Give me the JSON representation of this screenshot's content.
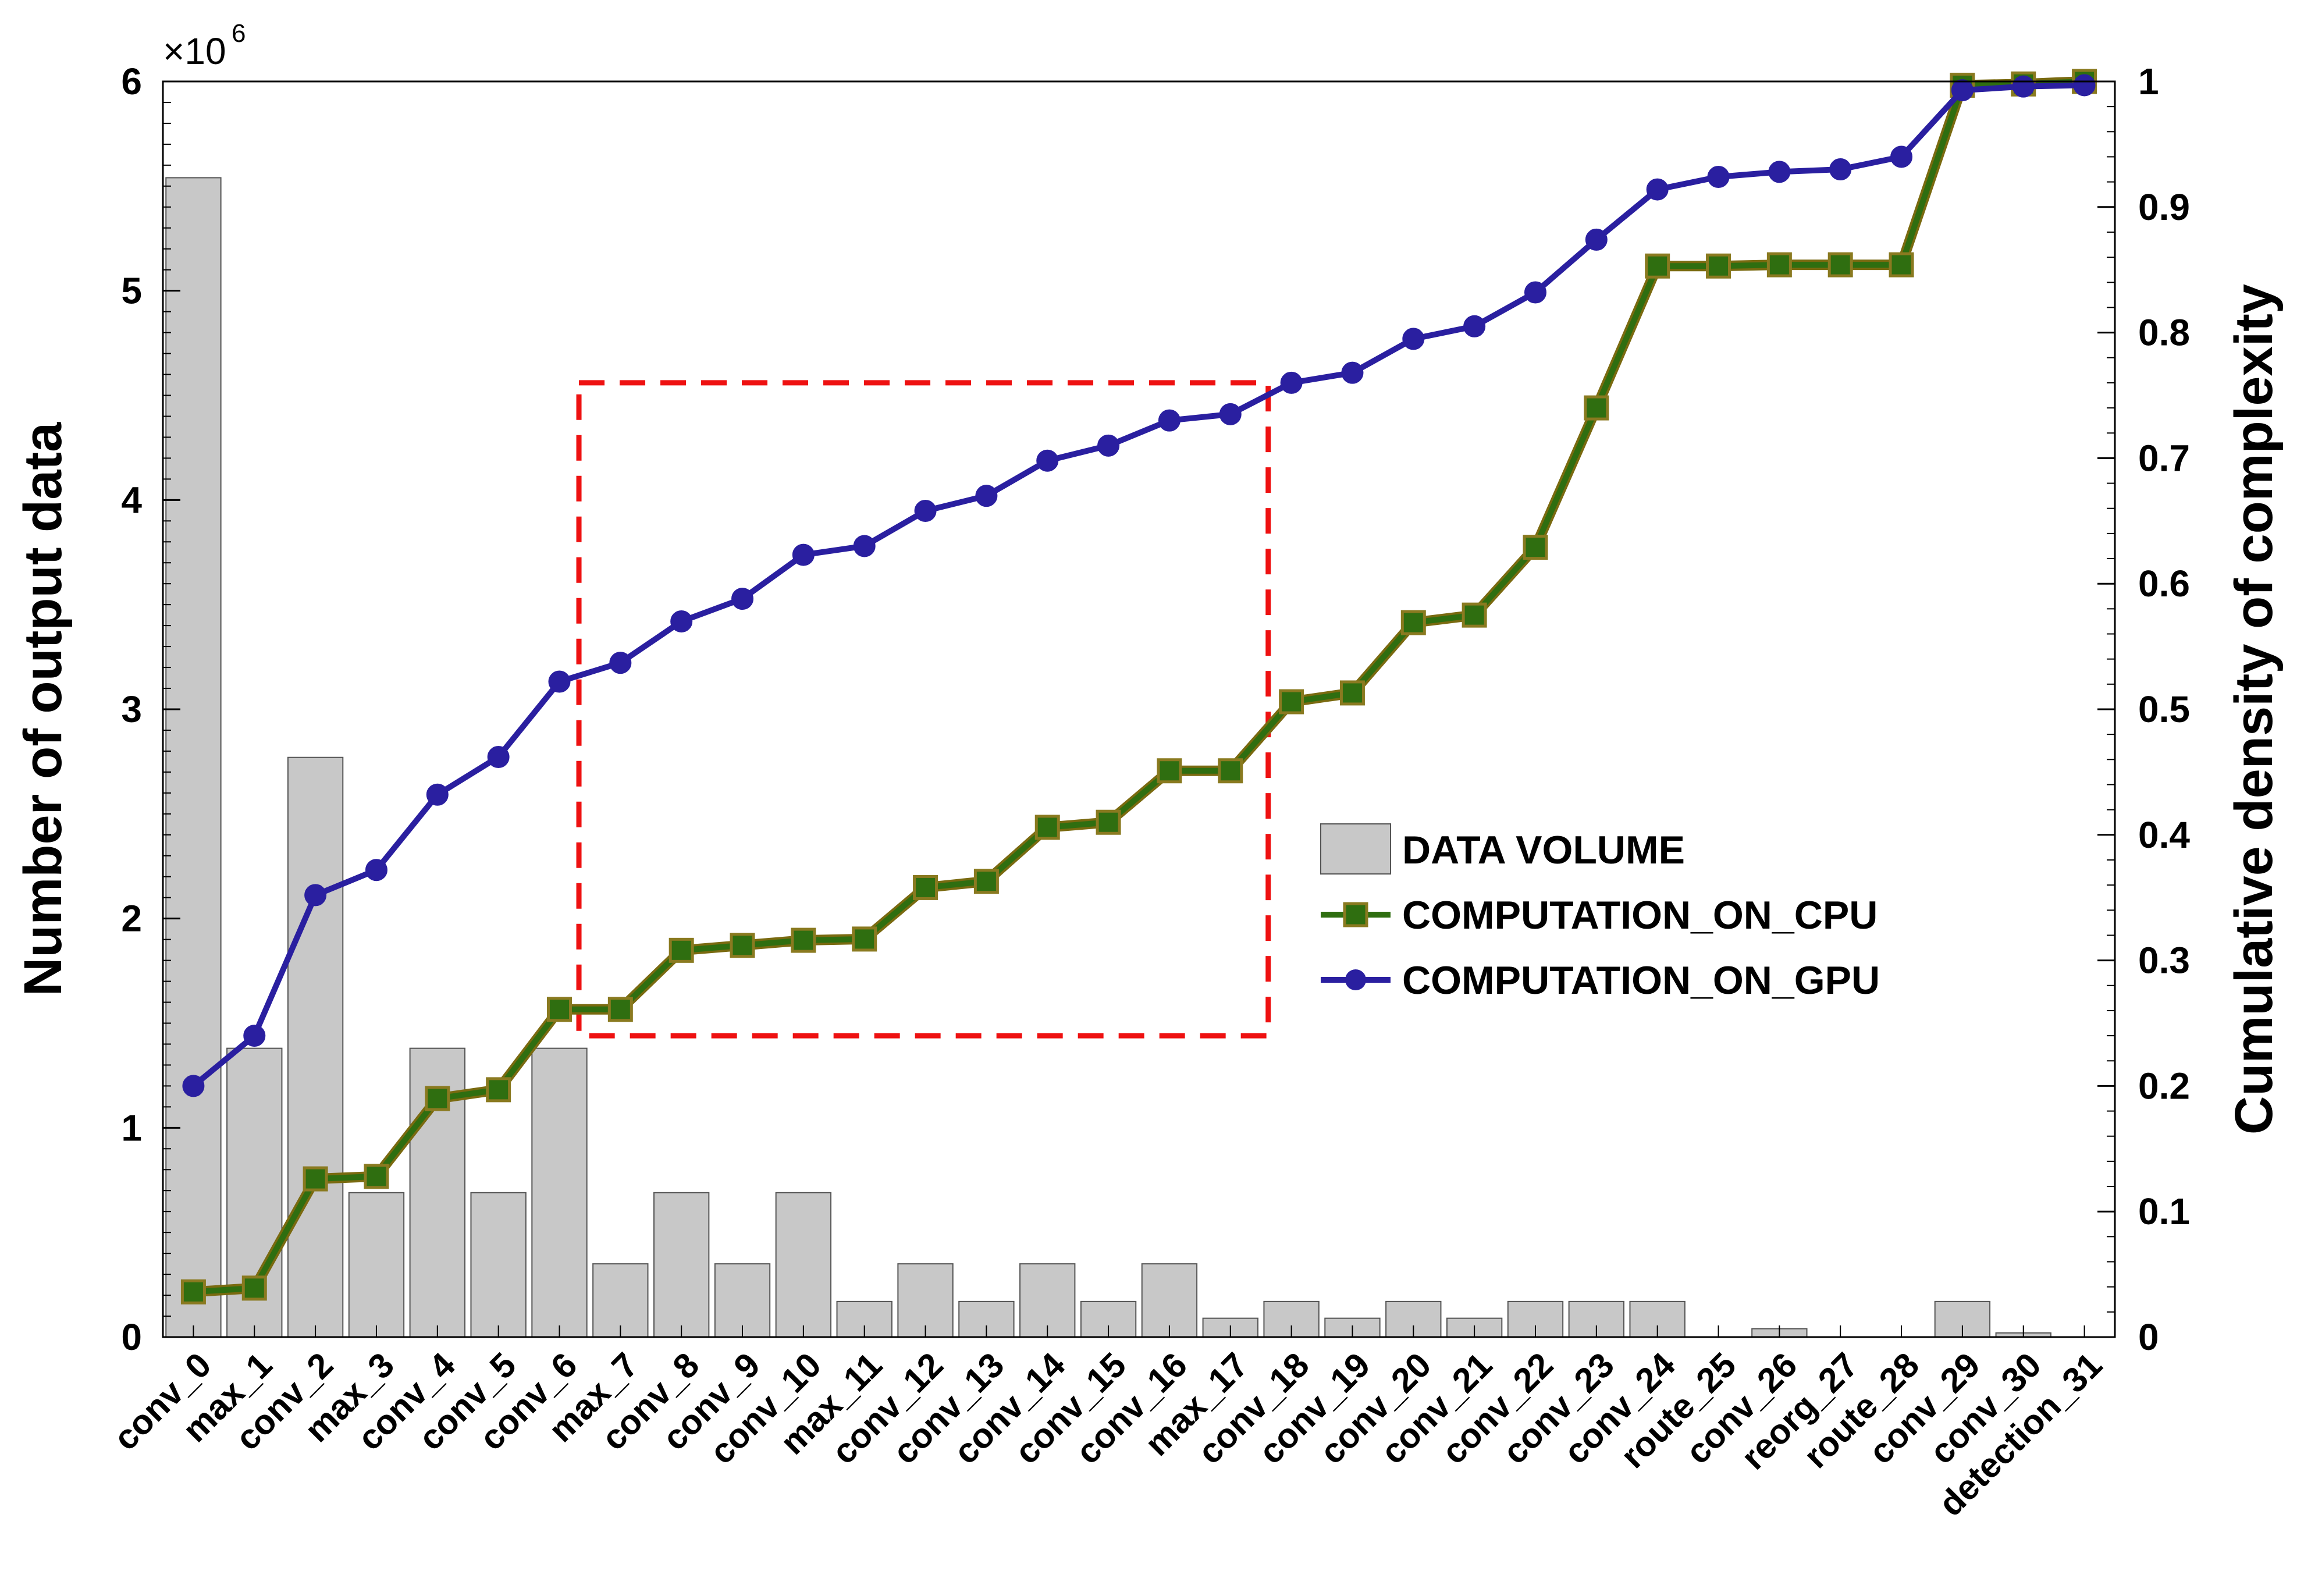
{
  "chart_data": {
    "type": "bar",
    "categories": [
      "conv_0",
      "max_1",
      "conv_2",
      "max_3",
      "conv_4",
      "conv_5",
      "conv_6",
      "max_7",
      "conv_8",
      "conv_9",
      "conv_10",
      "max_11",
      "conv_12",
      "conv_13",
      "conv_14",
      "conv_15",
      "conv_16",
      "max_17",
      "conv_18",
      "conv_19",
      "conv_20",
      "conv_21",
      "conv_22",
      "conv_23",
      "conv_24",
      "route_25",
      "conv_26",
      "reorg_27",
      "route_28",
      "conv_29",
      "conv_30",
      "detection_31"
    ],
    "ylabel": "Number of output data",
    "y2label": "Cumulative density of complexity",
    "y_multiplier": "×10",
    "y_multiplier_exp": "6",
    "ylim": [
      0,
      6000000
    ],
    "y_ticks": [
      0,
      1,
      2,
      3,
      4,
      5,
      6
    ],
    "y2lim": [
      0,
      1
    ],
    "y2_ticks": [
      "0",
      "0.1",
      "0.2",
      "0.3",
      "0.4",
      "0.5",
      "0.6",
      "0.7",
      "0.8",
      "0.9",
      "1"
    ],
    "grid": false,
    "legend_position": "right-middle",
    "series": [
      {
        "name": "DATA VOLUME",
        "type": "bar",
        "axis": "left",
        "color": "#c8c8c8",
        "values": [
          5540000,
          1380000,
          2770000,
          690000,
          1380000,
          690000,
          1380000,
          350000,
          690000,
          350000,
          690000,
          170000,
          350000,
          170000,
          350000,
          170000,
          350000,
          90000,
          170000,
          90000,
          170000,
          90000,
          170000,
          170000,
          170000,
          0,
          40000,
          0,
          0,
          170000,
          20000,
          0
        ]
      },
      {
        "name": "COMPUTATION_ON_CPU",
        "type": "line",
        "axis": "right",
        "color": "#2f6e10",
        "marker": "square",
        "values": [
          0.036,
          0.039,
          0.126,
          0.128,
          0.19,
          0.197,
          0.261,
          0.261,
          0.308,
          0.312,
          0.316,
          0.317,
          0.358,
          0.363,
          0.406,
          0.41,
          0.451,
          0.451,
          0.506,
          0.513,
          0.569,
          0.575,
          0.629,
          0.74,
          0.853,
          0.853,
          0.854,
          0.854,
          0.854,
          0.997,
          0.998,
          1.0
        ]
      },
      {
        "name": "COMPUTATION_ON_GPU",
        "type": "line",
        "axis": "right",
        "color": "#2a1fa0",
        "marker": "circle",
        "values": [
          0.2,
          0.24,
          0.352,
          0.372,
          0.432,
          0.462,
          0.522,
          0.537,
          0.57,
          0.588,
          0.623,
          0.63,
          0.658,
          0.67,
          0.698,
          0.71,
          0.73,
          0.735,
          0.76,
          0.768,
          0.795,
          0.805,
          0.832,
          0.874,
          0.914,
          0.924,
          0.928,
          0.93,
          0.94,
          0.993,
          0.996,
          0.997
        ]
      }
    ],
    "annotation": {
      "type": "dashed-rectangle",
      "color": "#ee1111",
      "x_from": "conv_6",
      "x_to": "max_17",
      "y2_range": [
        0.24,
        0.76
      ]
    }
  }
}
